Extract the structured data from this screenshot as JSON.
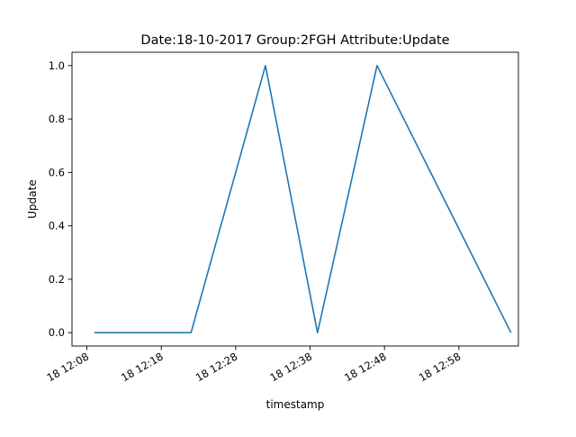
{
  "chart_data": {
    "type": "line",
    "title": "Date:18-10-2017  Group:2FGH Attribute:Update",
    "xlabel": "timestamp",
    "ylabel": "Update",
    "x_ticks": [
      "18 12:08",
      "18 12:18",
      "18 12:28",
      "18 12:38",
      "18 12:48",
      "18 12:58"
    ],
    "y_ticks": [
      "0.0",
      "0.2",
      "0.4",
      "0.6",
      "0.8",
      "1.0"
    ],
    "xlim": [
      "12:06",
      "13:06"
    ],
    "ylim": [
      -0.05,
      1.05
    ],
    "grid": false,
    "legend": "none",
    "series": [
      {
        "color": "#1f77b4",
        "x": [
          "12:09",
          "12:22",
          "12:32",
          "12:39",
          "12:47",
          "13:05"
        ],
        "y": [
          0.0,
          0.0,
          1.0,
          0.0,
          1.0,
          0.0
        ]
      }
    ]
  }
}
